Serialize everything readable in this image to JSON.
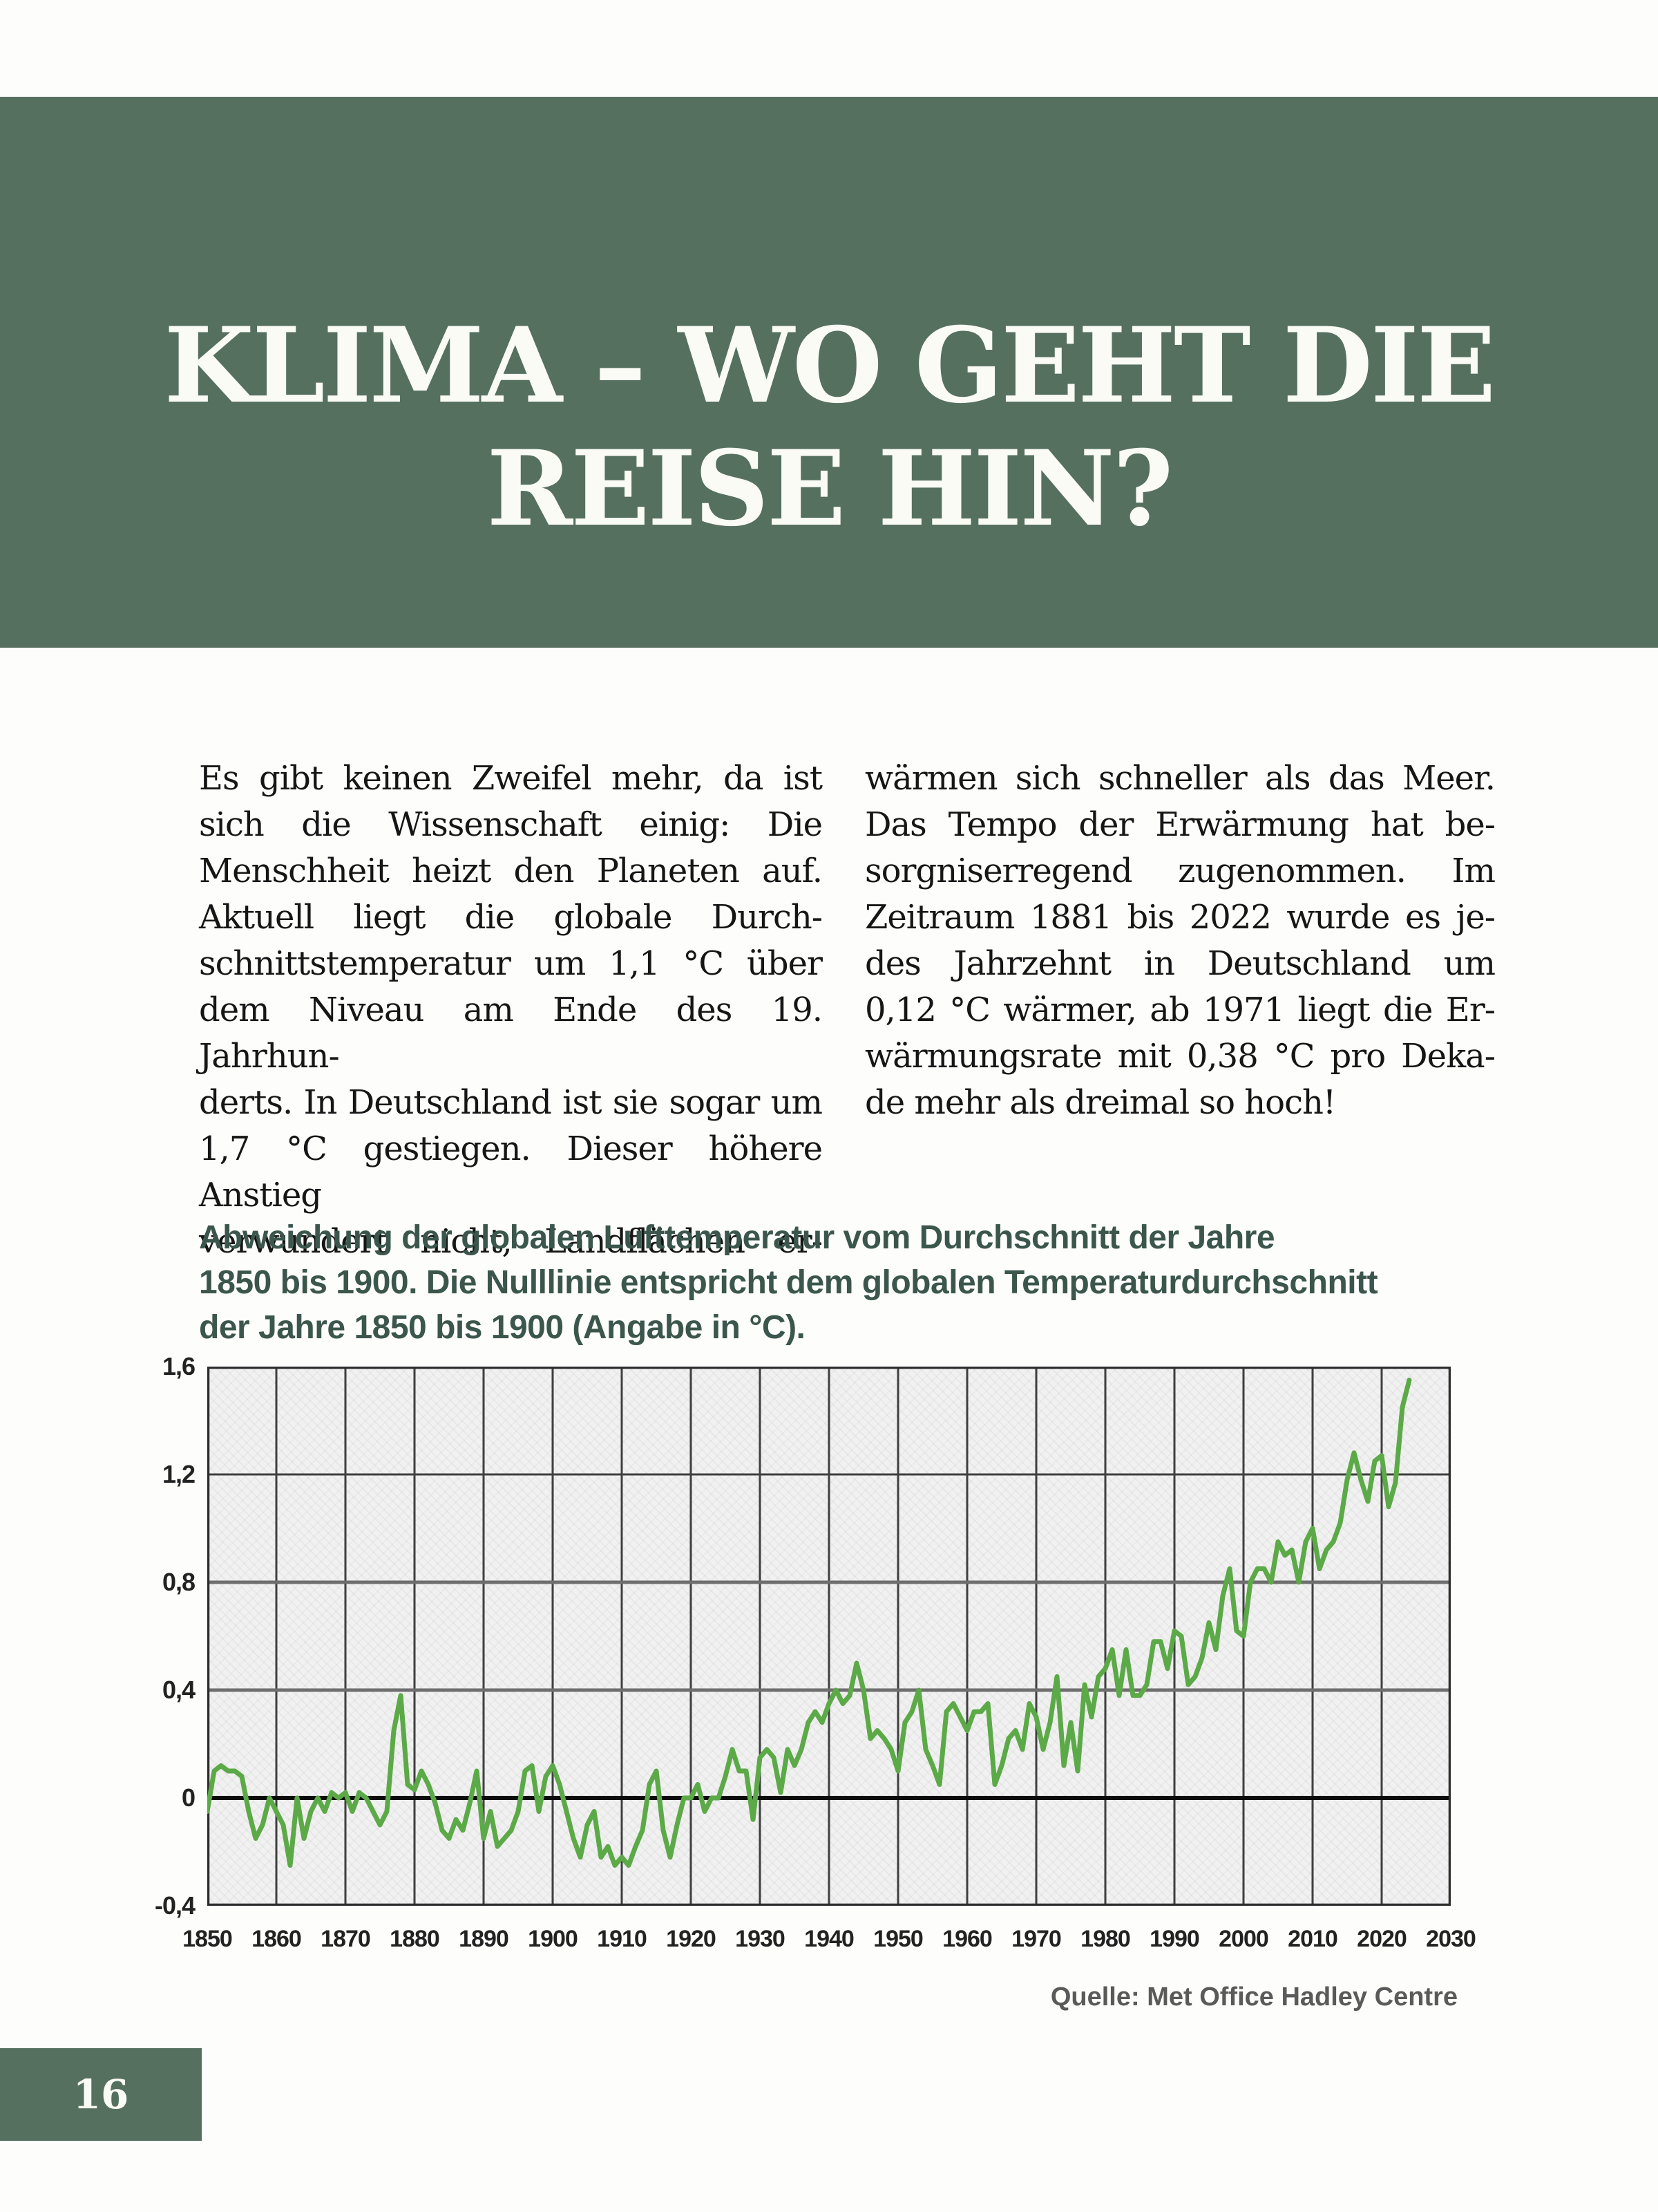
{
  "header": {
    "title": "KLIMA – WO GEHT DIE\nREISE HIN?"
  },
  "body": {
    "left_lines": [
      "Es gibt keinen Zweifel mehr, da ist",
      "sich die Wissenschaft einig: Die",
      "Menschheit heizt den Planeten auf.",
      "Aktuell liegt die globale Durch-",
      "schnittstemperatur um 1,1 °C über",
      "dem Niveau am Ende des 19. Jahrhun-",
      "derts. In Deutschland ist sie sogar um",
      "1,7 °C gestiegen. Dieser höhere Anstieg",
      "verwundert nicht, Landflächen er-"
    ],
    "right_lines": [
      "wärmen sich schneller als das Meer.",
      "Das Tempo der Erwärmung hat be-",
      "sorgniserregend zugenommen. Im",
      "Zeitraum 1881 bis 2022 wurde es je-",
      "des Jahrzehnt in Deutschland um",
      "0,12 °C wärmer, ab 1971 liegt die Er-",
      "wärmungsrate mit 0,38 °C pro Deka-",
      "de mehr als dreimal so hoch!"
    ]
  },
  "figure": {
    "caption": "Abweichung der globalen Lufttemperatur vom Durchschnitt der Jahre\n1850 bis 1900. Die Nulllinie entspricht dem globalen Temperaturdurchschnitt\nder Jahre 1850 bis 1900 (Angabe in °C).",
    "source": "Quelle: Met Office Hadley Centre"
  },
  "footer": {
    "page_number": "16"
  },
  "colors": {
    "header_green": "#567060",
    "caption_green": "#3b564d",
    "line_green": "#5ca948",
    "grid_dark": "#3f3f3f",
    "grid_mid": "#6e6e6e",
    "zero_line": "#0c0c0c",
    "plot_bg": "#f1f1f1"
  },
  "chart_data": {
    "type": "line",
    "title": "Abweichung der globalen Lufttemperatur vom Durchschnitt der Jahre 1850 bis 1900 (Angabe in °C)",
    "source": "Quelle: Met Office Hadley Centre",
    "xlim": [
      1850,
      2030
    ],
    "ylim": [
      -0.4,
      1.6
    ],
    "grid": true,
    "legend": "none",
    "x_ticks": [
      1850,
      1860,
      1870,
      1880,
      1890,
      1900,
      1910,
      1920,
      1930,
      1940,
      1950,
      1960,
      1970,
      1980,
      1990,
      2000,
      2010,
      2020,
      2030
    ],
    "y_ticks": [
      {
        "value": 1.6,
        "label": "1,6"
      },
      {
        "value": 1.2,
        "label": "1,2"
      },
      {
        "value": 0.8,
        "label": "0,8"
      },
      {
        "value": 0.4,
        "label": "0,4"
      },
      {
        "value": 0,
        "label": "0"
      },
      {
        "value": -0.4,
        "label": "-0,4"
      }
    ],
    "series": [
      {
        "name": "Globale Lufttemperatur-Abweichung (°C)",
        "start_year": 1850,
        "values": [
          -0.05,
          0.1,
          0.12,
          0.1,
          0.1,
          0.08,
          -0.05,
          -0.15,
          -0.1,
          0.0,
          -0.05,
          -0.1,
          -0.25,
          0.0,
          -0.15,
          -0.05,
          0.0,
          -0.05,
          0.02,
          0.0,
          0.02,
          -0.05,
          0.02,
          0.0,
          -0.05,
          -0.1,
          -0.05,
          0.25,
          0.38,
          0.05,
          0.03,
          0.1,
          0.05,
          -0.02,
          -0.12,
          -0.15,
          -0.08,
          -0.12,
          -0.02,
          0.1,
          -0.15,
          -0.05,
          -0.18,
          -0.15,
          -0.12,
          -0.05,
          0.1,
          0.12,
          -0.05,
          0.08,
          0.12,
          0.05,
          -0.05,
          -0.15,
          -0.22,
          -0.1,
          -0.05,
          -0.22,
          -0.18,
          -0.25,
          -0.22,
          -0.25,
          -0.18,
          -0.12,
          0.05,
          0.1,
          -0.12,
          -0.22,
          -0.1,
          0.0,
          0.0,
          0.05,
          -0.05,
          0.0,
          0.0,
          0.08,
          0.18,
          0.1,
          0.1,
          -0.08,
          0.15,
          0.18,
          0.15,
          0.02,
          0.18,
          0.12,
          0.18,
          0.28,
          0.32,
          0.28,
          0.35,
          0.4,
          0.35,
          0.38,
          0.5,
          0.4,
          0.22,
          0.25,
          0.22,
          0.18,
          0.1,
          0.28,
          0.32,
          0.4,
          0.18,
          0.12,
          0.05,
          0.32,
          0.35,
          0.3,
          0.25,
          0.32,
          0.32,
          0.35,
          0.05,
          0.12,
          0.22,
          0.25,
          0.18,
          0.35,
          0.3,
          0.18,
          0.28,
          0.45,
          0.12,
          0.28,
          0.1,
          0.42,
          0.3,
          0.45,
          0.48,
          0.55,
          0.38,
          0.55,
          0.38,
          0.38,
          0.42,
          0.58,
          0.58,
          0.48,
          0.62,
          0.6,
          0.42,
          0.45,
          0.52,
          0.65,
          0.55,
          0.75,
          0.85,
          0.62,
          0.6,
          0.8,
          0.85,
          0.85,
          0.8,
          0.95,
          0.9,
          0.92,
          0.8,
          0.95,
          1.0,
          0.85,
          0.92,
          0.95,
          1.02,
          1.18,
          1.28,
          1.18,
          1.1,
          1.25,
          1.27,
          1.08,
          1.17,
          1.45,
          1.55
        ]
      }
    ]
  }
}
